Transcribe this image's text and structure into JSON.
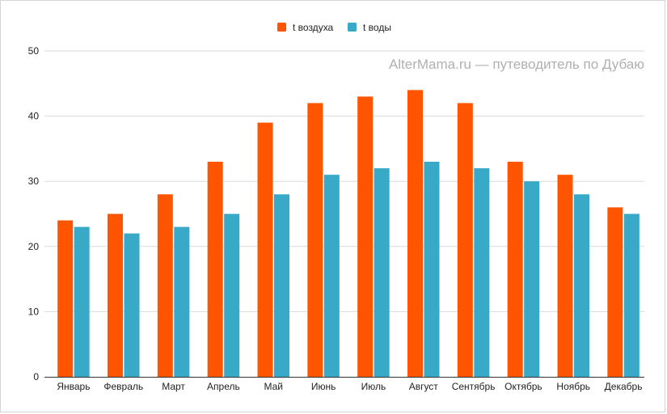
{
  "chart_data": {
    "type": "bar",
    "title": "",
    "xlabel": "",
    "ylabel": "",
    "watermark": "AlterMama.ru — путеводитель по Дубаю",
    "categories": [
      "Январь",
      "Февраль",
      "Март",
      "Апрель",
      "Май",
      "Июнь",
      "Июль",
      "Август",
      "Сентябрь",
      "Октябрь",
      "Ноябрь",
      "Декабрь"
    ],
    "series": [
      {
        "name": "t воздуха",
        "color": "#ff5500",
        "values": [
          24,
          25,
          28,
          33,
          39,
          42,
          43,
          44,
          42,
          33,
          31,
          26
        ]
      },
      {
        "name": "t воды",
        "color": "#38a9c7",
        "values": [
          23,
          22,
          23,
          25,
          28,
          31,
          32,
          33,
          32,
          30,
          28,
          25
        ]
      }
    ],
    "ylim": [
      0,
      50
    ],
    "yticks": [
      "0",
      "10",
      "20",
      "30",
      "40",
      "50"
    ],
    "grid": true,
    "legend_position": "top"
  }
}
